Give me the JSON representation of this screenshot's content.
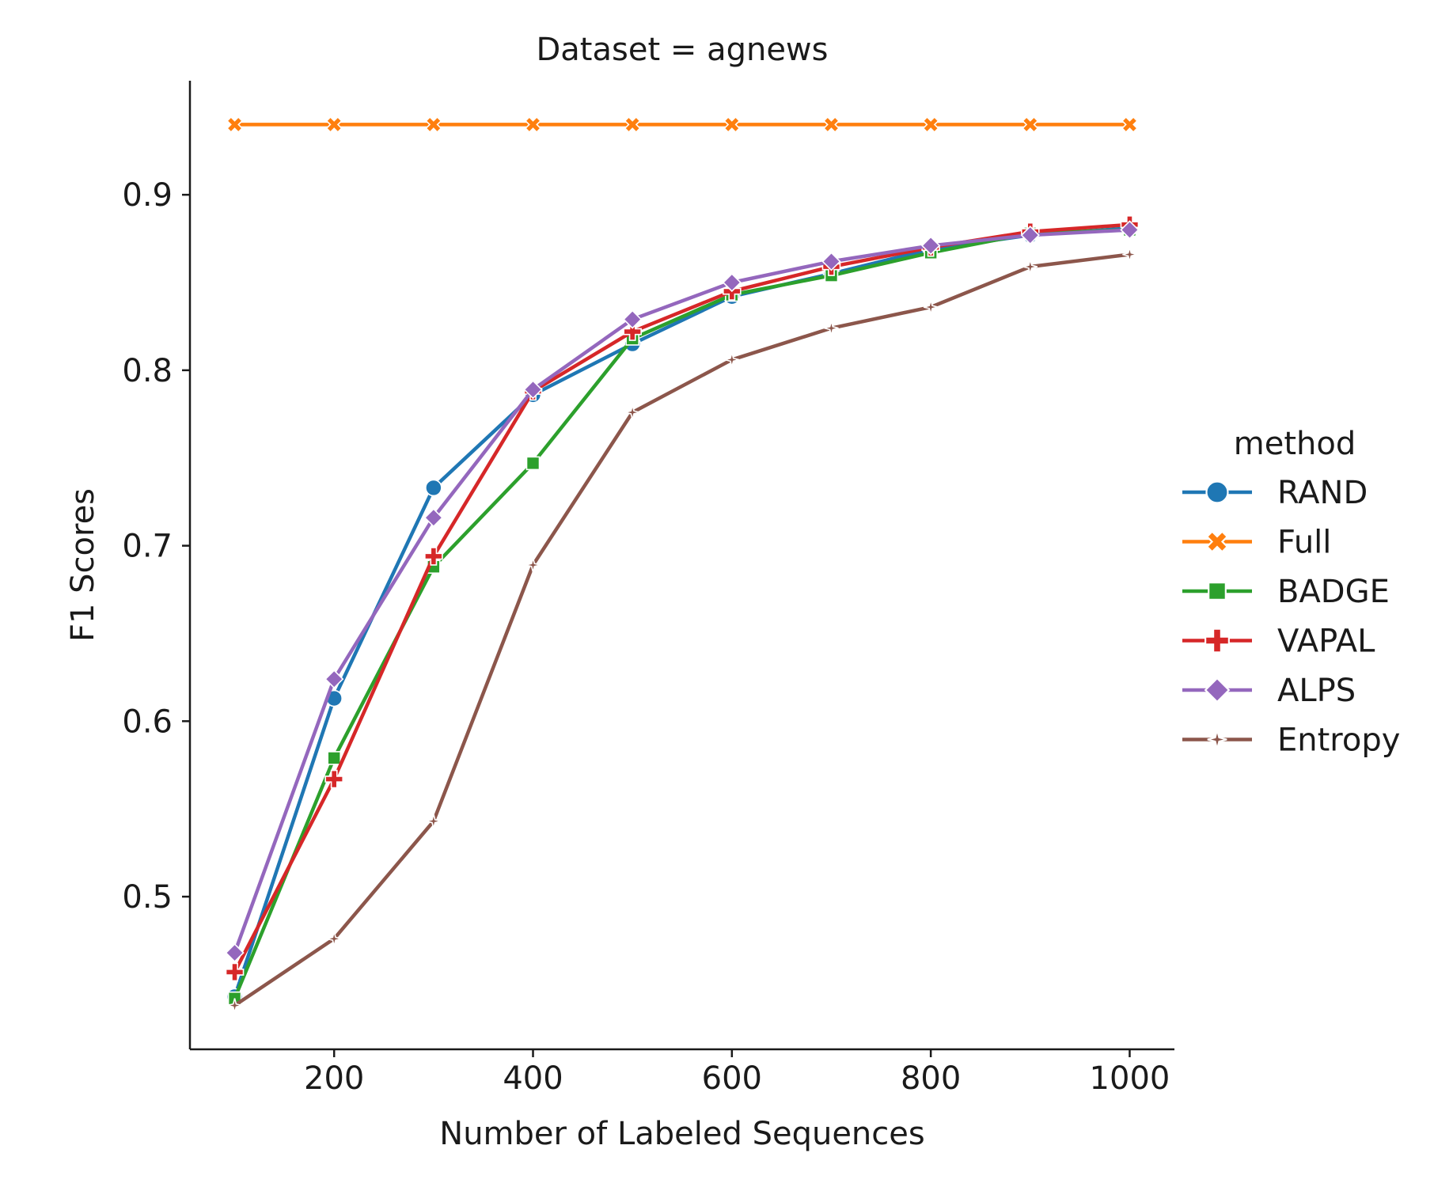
{
  "chart_data": {
    "type": "line",
    "title": "Dataset = agnews",
    "xlabel": "Number of Labeled Sequences",
    "ylabel": "F1 Scores",
    "xlim": [
      55,
      1045
    ],
    "ylim": [
      0.413,
      0.965
    ],
    "xticks": [
      200,
      400,
      600,
      800,
      1000
    ],
    "xtick_labels": [
      "200",
      "400",
      "600",
      "800",
      "1000"
    ],
    "yticks": [
      0.5,
      0.6,
      0.7,
      0.8,
      0.9
    ],
    "ytick_labels": [
      "0.5",
      "0.6",
      "0.7",
      "0.8",
      "0.9"
    ],
    "grid": false,
    "legend": {
      "title": "method",
      "placement": "right"
    },
    "x": [
      100,
      200,
      300,
      400,
      500,
      600,
      700,
      800,
      900,
      1000
    ],
    "series": [
      {
        "name": "RAND",
        "color": "#1f77b4",
        "marker": "circle",
        "values": [
          0.443,
          0.613,
          0.733,
          0.786,
          0.815,
          0.842,
          0.855,
          0.869,
          0.877,
          0.881
        ]
      },
      {
        "name": "Full",
        "color": "#ff7f0e",
        "marker": "x",
        "values": [
          0.94,
          0.94,
          0.94,
          0.94,
          0.94,
          0.94,
          0.94,
          0.94,
          0.94,
          0.94
        ]
      },
      {
        "name": "BADGE",
        "color": "#2ca02c",
        "marker": "square",
        "values": [
          0.442,
          0.579,
          0.688,
          0.747,
          0.818,
          0.843,
          0.854,
          0.867,
          0.878,
          0.88
        ]
      },
      {
        "name": "VAPAL",
        "color": "#d62728",
        "marker": "plus",
        "values": [
          0.457,
          0.567,
          0.694,
          0.788,
          0.822,
          0.845,
          0.859,
          0.87,
          0.879,
          0.883
        ]
      },
      {
        "name": "ALPS",
        "color": "#9467bd",
        "marker": "diamond",
        "values": [
          0.468,
          0.624,
          0.716,
          0.789,
          0.829,
          0.85,
          0.862,
          0.871,
          0.877,
          0.88
        ]
      },
      {
        "name": "Entropy",
        "color": "#8c564b",
        "marker": "star",
        "values": [
          0.438,
          0.476,
          0.543,
          0.689,
          0.776,
          0.806,
          0.824,
          0.836,
          0.859,
          0.866
        ]
      }
    ]
  }
}
